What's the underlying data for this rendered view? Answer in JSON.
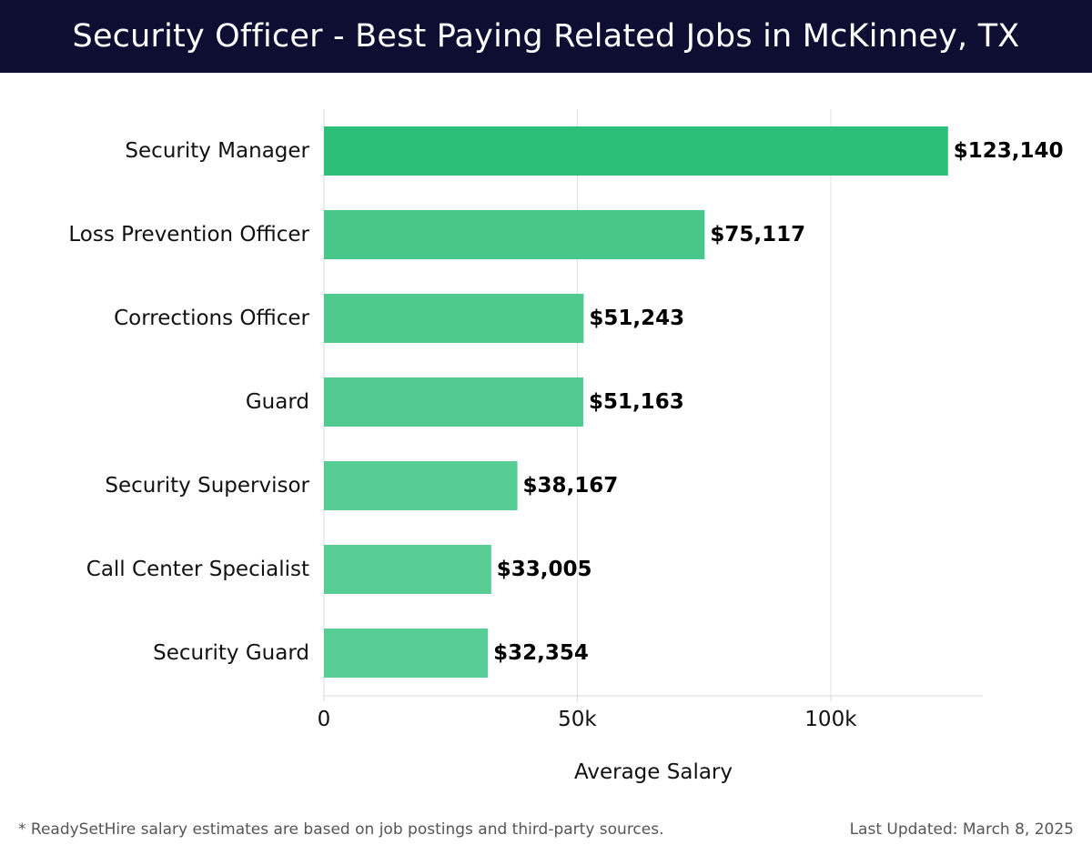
{
  "header": {
    "title": "Security Officer - Best Paying Related Jobs in McKinney, TX"
  },
  "chart_data": {
    "type": "bar",
    "orientation": "horizontal",
    "title": "Security Officer - Best Paying Related Jobs in McKinney, TX",
    "xlabel": "Average Salary",
    "ylabel": "",
    "xlim": [
      0,
      130000
    ],
    "x_ticks": [
      {
        "value": 0,
        "label": "0"
      },
      {
        "value": 50000,
        "label": "50k"
      },
      {
        "value": 100000,
        "label": "100k"
      }
    ],
    "grid": true,
    "categories": [
      "Security Manager",
      "Loss Prevention Officer",
      "Corrections Officer",
      "Guard",
      "Security Supervisor",
      "Call Center Specialist",
      "Security Guard"
    ],
    "values": [
      123140,
      75117,
      51243,
      51163,
      38167,
      33005,
      32354
    ],
    "value_labels": [
      "$123,140",
      "$75,117",
      "$51,243",
      "$51,163",
      "$38,167",
      "$33,005",
      "$32,354"
    ],
    "colors": [
      "#2bbf78",
      "#47c78a",
      "#4fca8f",
      "#50ca90",
      "#57cd95",
      "#58cd96",
      "#59cd96"
    ]
  },
  "footer": {
    "note": "* ReadySetHire salary estimates are based on job postings and third-party sources.",
    "updated": "Last Updated: March 8, 2025"
  }
}
